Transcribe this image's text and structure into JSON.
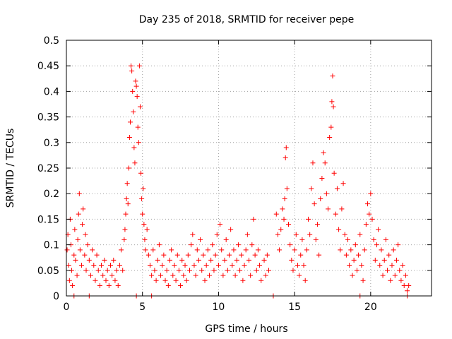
{
  "chart_data": {
    "type": "scatter",
    "title": "Day 235 of 2018, SRMTID for receiver pepe",
    "xlabel": "GPS time / hours",
    "ylabel": "SRMTID / TECUs",
    "xlim": [
      0,
      24
    ],
    "ylim": [
      0,
      0.5
    ],
    "xticks": [
      0,
      5,
      10,
      15,
      20
    ],
    "xtick_labels": [
      "0",
      "5",
      "10",
      "15",
      "20"
    ],
    "yticks": [
      0,
      0.05,
      0.1,
      0.15,
      0.2,
      0.25,
      0.3,
      0.35,
      0.4,
      0.45,
      0.5
    ],
    "ytick_labels": [
      "0",
      "0.05",
      "0.1",
      "0.15",
      "0.2",
      "0.25",
      "0.3",
      "0.35",
      "0.4",
      "0.45",
      "0.5"
    ],
    "grid": true,
    "legend": "none",
    "marker_color": "#ff0000",
    "series": [
      {
        "name": "SRMTID",
        "marker": "plus",
        "points": [
          [
            0.05,
            0.09
          ],
          [
            0.1,
            0.12
          ],
          [
            0.15,
            0.06
          ],
          [
            0.2,
            0.03
          ],
          [
            0.25,
            0.15
          ],
          [
            0.3,
            0.1
          ],
          [
            0.35,
            0.05
          ],
          [
            0.4,
            0.02
          ],
          [
            0.5,
            0.08
          ],
          [
            0.55,
            0.13
          ],
          [
            0.6,
            0.07
          ],
          [
            0.7,
            0.04
          ],
          [
            0.75,
            0.11
          ],
          [
            0.8,
            0.16
          ],
          [
            0.85,
            0.2
          ],
          [
            0.9,
            0.09
          ],
          [
            1.0,
            0.06
          ],
          [
            1.05,
            0.14
          ],
          [
            1.1,
            0.17
          ],
          [
            1.2,
            0.08
          ],
          [
            1.25,
            0.12
          ],
          [
            1.3,
            0.05
          ],
          [
            1.4,
            0.1
          ],
          [
            1.5,
            0.07
          ],
          [
            1.6,
            0.04
          ],
          [
            1.7,
            0.09
          ],
          [
            1.8,
            0.06
          ],
          [
            1.9,
            0.03
          ],
          [
            2.0,
            0.08
          ],
          [
            2.1,
            0.05
          ],
          [
            2.2,
            0.02
          ],
          [
            2.3,
            0.06
          ],
          [
            2.4,
            0.04
          ],
          [
            2.5,
            0.07
          ],
          [
            2.6,
            0.03
          ],
          [
            2.7,
            0.05
          ],
          [
            2.8,
            0.02
          ],
          [
            2.9,
            0.06
          ],
          [
            3.0,
            0.04
          ],
          [
            3.1,
            0.07
          ],
          [
            3.2,
            0.03
          ],
          [
            3.3,
            0.05
          ],
          [
            3.4,
            0.02
          ],
          [
            3.5,
            0.06
          ],
          [
            3.6,
            0.09
          ],
          [
            3.7,
            0.05
          ],
          [
            3.8,
            0.11
          ],
          [
            3.85,
            0.13
          ],
          [
            3.9,
            0.16
          ],
          [
            3.95,
            0.19
          ],
          [
            4.0,
            0.22
          ],
          [
            4.05,
            0.18
          ],
          [
            4.1,
            0.25
          ],
          [
            4.15,
            0.31
          ],
          [
            4.2,
            0.34
          ],
          [
            4.25,
            0.45
          ],
          [
            4.3,
            0.44
          ],
          [
            4.35,
            0.4
          ],
          [
            4.4,
            0.36
          ],
          [
            4.45,
            0.29
          ],
          [
            4.5,
            0.26
          ],
          [
            4.55,
            0.42
          ],
          [
            4.6,
            0.41
          ],
          [
            4.65,
            0.39
          ],
          [
            4.7,
            0.33
          ],
          [
            4.75,
            0.3
          ],
          [
            4.8,
            0.45
          ],
          [
            4.85,
            0.37
          ],
          [
            4.9,
            0.24
          ],
          [
            4.95,
            0.19
          ],
          [
            5.0,
            0.16
          ],
          [
            5.05,
            0.21
          ],
          [
            5.1,
            0.14
          ],
          [
            5.15,
            0.11
          ],
          [
            5.2,
            0.09
          ],
          [
            5.3,
            0.13
          ],
          [
            5.4,
            0.08
          ],
          [
            5.5,
            0.06
          ],
          [
            5.6,
            0.04
          ],
          [
            5.7,
            0.09
          ],
          [
            5.8,
            0.05
          ],
          [
            5.9,
            0.03
          ],
          [
            6.0,
            0.07
          ],
          [
            6.1,
            0.1
          ],
          [
            6.2,
            0.04
          ],
          [
            6.3,
            0.06
          ],
          [
            6.4,
            0.08
          ],
          [
            6.5,
            0.03
          ],
          [
            6.6,
            0.05
          ],
          [
            6.7,
            0.02
          ],
          [
            6.8,
            0.07
          ],
          [
            6.9,
            0.09
          ],
          [
            7.0,
            0.04
          ],
          [
            7.1,
            0.06
          ],
          [
            7.2,
            0.03
          ],
          [
            7.3,
            0.08
          ],
          [
            7.4,
            0.05
          ],
          [
            7.5,
            0.02
          ],
          [
            7.6,
            0.07
          ],
          [
            7.7,
            0.04
          ],
          [
            7.8,
            0.06
          ],
          [
            7.9,
            0.03
          ],
          [
            8.0,
            0.08
          ],
          [
            8.1,
            0.05
          ],
          [
            8.2,
            0.1
          ],
          [
            8.3,
            0.12
          ],
          [
            8.4,
            0.06
          ],
          [
            8.5,
            0.04
          ],
          [
            8.6,
            0.09
          ],
          [
            8.7,
            0.07
          ],
          [
            8.8,
            0.11
          ],
          [
            8.9,
            0.05
          ],
          [
            9.0,
            0.08
          ],
          [
            9.1,
            0.03
          ],
          [
            9.2,
            0.06
          ],
          [
            9.3,
            0.09
          ],
          [
            9.4,
            0.04
          ],
          [
            9.5,
            0.07
          ],
          [
            9.6,
            0.1
          ],
          [
            9.7,
            0.05
          ],
          [
            9.8,
            0.08
          ],
          [
            9.9,
            0.12
          ],
          [
            10.0,
            0.06
          ],
          [
            10.1,
            0.14
          ],
          [
            10.2,
            0.09
          ],
          [
            10.3,
            0.04
          ],
          [
            10.4,
            0.07
          ],
          [
            10.5,
            0.11
          ],
          [
            10.6,
            0.05
          ],
          [
            10.7,
            0.08
          ],
          [
            10.8,
            0.13
          ],
          [
            10.9,
            0.06
          ],
          [
            11.0,
            0.09
          ],
          [
            11.1,
            0.04
          ],
          [
            11.2,
            0.07
          ],
          [
            11.3,
            0.1
          ],
          [
            11.4,
            0.05
          ],
          [
            11.5,
            0.08
          ],
          [
            11.6,
            0.03
          ],
          [
            11.7,
            0.06
          ],
          [
            11.8,
            0.09
          ],
          [
            11.9,
            0.12
          ],
          [
            12.0,
            0.07
          ],
          [
            12.1,
            0.04
          ],
          [
            12.2,
            0.1
          ],
          [
            12.3,
            0.15
          ],
          [
            12.4,
            0.08
          ],
          [
            12.5,
            0.05
          ],
          [
            12.6,
            0.09
          ],
          [
            12.7,
            0.06
          ],
          [
            12.8,
            0.03
          ],
          [
            13.0,
            0.07
          ],
          [
            13.1,
            0.04
          ],
          [
            13.2,
            0.08
          ],
          [
            13.3,
            0.05
          ],
          [
            13.8,
            0.16
          ],
          [
            13.9,
            0.12
          ],
          [
            14.0,
            0.09
          ],
          [
            14.1,
            0.13
          ],
          [
            14.2,
            0.17
          ],
          [
            14.3,
            0.15
          ],
          [
            14.35,
            0.19
          ],
          [
            14.4,
            0.27
          ],
          [
            14.45,
            0.29
          ],
          [
            14.5,
            0.21
          ],
          [
            14.6,
            0.14
          ],
          [
            14.7,
            0.1
          ],
          [
            14.8,
            0.07
          ],
          [
            14.9,
            0.05
          ],
          [
            15.0,
            0.09
          ],
          [
            15.1,
            0.12
          ],
          [
            15.2,
            0.06
          ],
          [
            15.3,
            0.04
          ],
          [
            15.4,
            0.08
          ],
          [
            15.5,
            0.11
          ],
          [
            15.6,
            0.06
          ],
          [
            15.7,
            0.03
          ],
          [
            15.8,
            0.09
          ],
          [
            15.9,
            0.15
          ],
          [
            16.0,
            0.12
          ],
          [
            16.1,
            0.21
          ],
          [
            16.2,
            0.26
          ],
          [
            16.3,
            0.18
          ],
          [
            16.4,
            0.11
          ],
          [
            16.5,
            0.14
          ],
          [
            16.6,
            0.08
          ],
          [
            16.7,
            0.19
          ],
          [
            16.8,
            0.23
          ],
          [
            16.9,
            0.28
          ],
          [
            17.0,
            0.26
          ],
          [
            17.1,
            0.2
          ],
          [
            17.2,
            0.17
          ],
          [
            17.3,
            0.31
          ],
          [
            17.4,
            0.33
          ],
          [
            17.45,
            0.38
          ],
          [
            17.5,
            0.43
          ],
          [
            17.55,
            0.37
          ],
          [
            17.6,
            0.24
          ],
          [
            17.7,
            0.16
          ],
          [
            17.8,
            0.21
          ],
          [
            17.9,
            0.13
          ],
          [
            18.0,
            0.09
          ],
          [
            18.1,
            0.17
          ],
          [
            18.2,
            0.22
          ],
          [
            18.3,
            0.12
          ],
          [
            18.4,
            0.08
          ],
          [
            18.5,
            0.11
          ],
          [
            18.6,
            0.06
          ],
          [
            18.7,
            0.09
          ],
          [
            18.8,
            0.04
          ],
          [
            18.9,
            0.07
          ],
          [
            19.0,
            0.1
          ],
          [
            19.1,
            0.05
          ],
          [
            19.2,
            0.08
          ],
          [
            19.3,
            0.12
          ],
          [
            19.4,
            0.06
          ],
          [
            19.5,
            0.03
          ],
          [
            19.6,
            0.09
          ],
          [
            19.7,
            0.14
          ],
          [
            19.8,
            0.18
          ],
          [
            19.9,
            0.16
          ],
          [
            20.0,
            0.2
          ],
          [
            20.1,
            0.15
          ],
          [
            20.2,
            0.11
          ],
          [
            20.3,
            0.07
          ],
          [
            20.4,
            0.1
          ],
          [
            20.5,
            0.13
          ],
          [
            20.6,
            0.06
          ],
          [
            20.7,
            0.09
          ],
          [
            20.8,
            0.04
          ],
          [
            20.9,
            0.07
          ],
          [
            21.0,
            0.11
          ],
          [
            21.1,
            0.05
          ],
          [
            21.2,
            0.08
          ],
          [
            21.3,
            0.03
          ],
          [
            21.4,
            0.06
          ],
          [
            21.5,
            0.09
          ],
          [
            21.6,
            0.04
          ],
          [
            21.7,
            0.07
          ],
          [
            21.8,
            0.1
          ],
          [
            21.9,
            0.05
          ],
          [
            22.0,
            0.03
          ],
          [
            22.1,
            0.06
          ],
          [
            22.2,
            0.02
          ],
          [
            22.3,
            0.04
          ],
          [
            22.4,
            0.01
          ],
          [
            22.5,
            0.02
          ],
          [
            0.5,
            0.0
          ],
          [
            1.5,
            0.0
          ],
          [
            4.6,
            0.0
          ],
          [
            5.6,
            0.0
          ],
          [
            13.6,
            0.0
          ],
          [
            19.3,
            0.0
          ],
          [
            22.4,
            0.0
          ]
        ]
      }
    ]
  }
}
